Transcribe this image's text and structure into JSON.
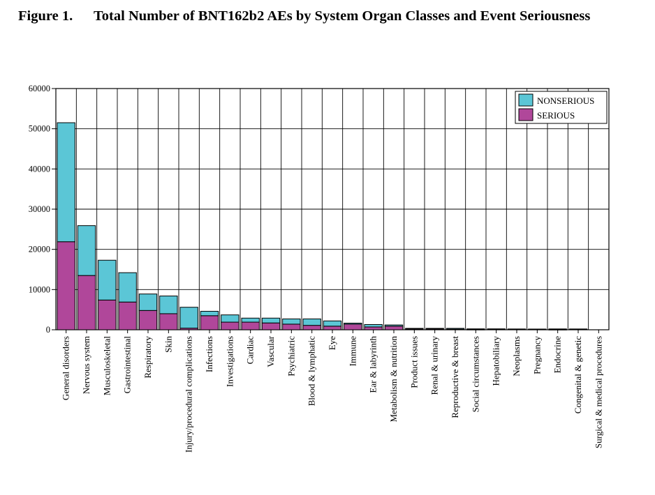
{
  "figure": {
    "number": "Figure 1.",
    "title": "Total Number of BNT162b2 AEs by System Organ Classes and Event Seriousness"
  },
  "chart_data": {
    "type": "bar",
    "stacked": true,
    "title": "Total Number of BNT162b2 AEs by System Organ Classes and Event Seriousness",
    "xlabel": "",
    "ylabel": "",
    "ylim": [
      0,
      60000
    ],
    "yticks": [
      "0",
      "10000",
      "20000",
      "30000",
      "40000",
      "50000",
      "60000"
    ],
    "grid": true,
    "legend_position": "top-right",
    "categories": [
      "General disorders",
      "Nervous system",
      "Musculoskeletal",
      "Gastrointestinal",
      "Respiratory",
      "Skin",
      "Injury/procedural complications",
      "Infections",
      "Investigations",
      "Cardiac",
      "Vascular",
      "Psychiatric",
      "Blood & lymphatic",
      "Eye",
      "Immune",
      "Ear & labyrinth",
      "Metabolism & nutrition",
      "Product issues",
      "Renal & urinary",
      "Reproductive & breast",
      "Social circumstances",
      "Hepatobiliary",
      "Neoplasms",
      "Pregnancy",
      "Endocrine",
      "Congenital & genetic",
      "Surgical & medical procedures"
    ],
    "series": [
      {
        "name": "SERIOUS",
        "color": "#b0479a",
        "values": [
          21900,
          13500,
          7400,
          6900,
          4800,
          4000,
          400,
          3500,
          1900,
          1900,
          1700,
          1400,
          1100,
          900,
          1400,
          700,
          900,
          200,
          200,
          150,
          80,
          150,
          150,
          100,
          60,
          100,
          0
        ]
      },
      {
        "name": "NONSERIOUS",
        "color": "#5bc6d6",
        "values": [
          29600,
          12400,
          9900,
          7300,
          4100,
          4400,
          5200,
          1100,
          1800,
          1000,
          1200,
          1300,
          1600,
          1300,
          250,
          600,
          300,
          150,
          150,
          200,
          150,
          80,
          50,
          80,
          150,
          100,
          0
        ]
      }
    ]
  }
}
